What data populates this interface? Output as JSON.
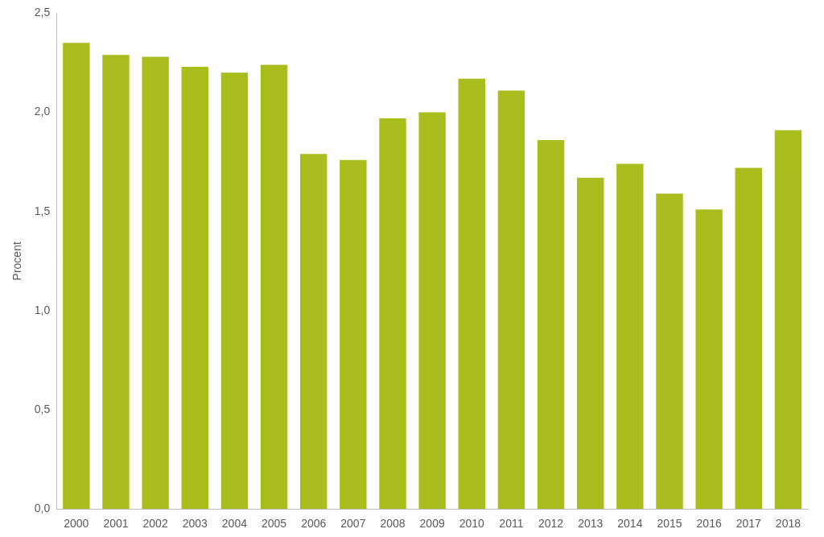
{
  "chart_data": {
    "type": "bar",
    "y_label": "Procent",
    "categories": [
      "2000",
      "2001",
      "2002",
      "2003",
      "2004",
      "2005",
      "2006",
      "2007",
      "2008",
      "2009",
      "2010",
      "2011",
      "2012",
      "2013",
      "2014",
      "2015",
      "2016",
      "2017",
      "2018"
    ],
    "values": [
      2.35,
      2.29,
      2.28,
      2.23,
      2.2,
      2.24,
      1.79,
      1.76,
      1.97,
      2.0,
      2.17,
      2.11,
      1.86,
      1.67,
      1.74,
      1.59,
      1.51,
      1.72,
      1.91
    ],
    "color": "#a9bd1c",
    "ylim": [
      0,
      2.5
    ],
    "yticks": [
      {
        "value": 0,
        "label": "0,0"
      },
      {
        "value": 0.5,
        "label": "0,5"
      },
      {
        "value": 1,
        "label": "1,0"
      },
      {
        "value": 1.5,
        "label": "1,5"
      },
      {
        "value": 2,
        "label": "2,0"
      },
      {
        "value": 2.5,
        "label": "2,5"
      }
    ],
    "grid": false
  }
}
